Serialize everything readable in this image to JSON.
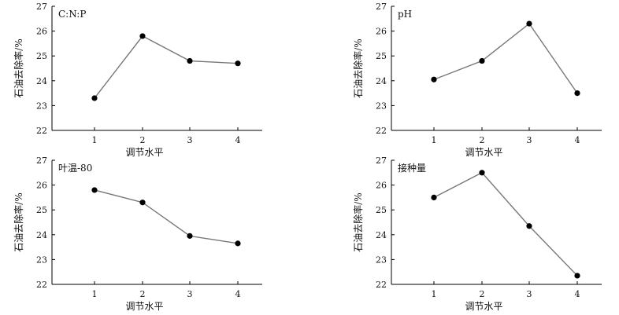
{
  "chart_data": [
    {
      "type": "line",
      "title": "C:N:P",
      "xlabel": "调节水平",
      "ylabel": "石油去除率/%",
      "x": [
        1,
        2,
        3,
        4
      ],
      "values": [
        23.3,
        25.8,
        24.8,
        24.7
      ],
      "ylim": [
        22,
        27
      ],
      "yticks": [
        22,
        23,
        24,
        25,
        26,
        27
      ],
      "grid": false,
      "series_color": "#777777",
      "marker_color": "#000000"
    },
    {
      "type": "line",
      "title": "pH",
      "xlabel": "调节水平",
      "ylabel": "石油去除率/%",
      "x": [
        1,
        2,
        3,
        4
      ],
      "values": [
        24.05,
        24.8,
        26.3,
        23.5
      ],
      "ylim": [
        22,
        27
      ],
      "yticks": [
        22,
        23,
        24,
        25,
        26,
        27
      ],
      "grid": false,
      "series_color": "#777777",
      "marker_color": "#000000"
    },
    {
      "type": "line",
      "title": "叶温-80",
      "xlabel": "调节水平",
      "ylabel": "石油去除率/%",
      "x": [
        1,
        2,
        3,
        4
      ],
      "values": [
        25.8,
        25.3,
        23.95,
        23.65
      ],
      "ylim": [
        22,
        27
      ],
      "yticks": [
        22,
        23,
        24,
        25,
        26,
        27
      ],
      "grid": false,
      "series_color": "#777777",
      "marker_color": "#000000"
    },
    {
      "type": "line",
      "title": "接种量",
      "xlabel": "调节水平",
      "ylabel": "石油去除率/%",
      "x": [
        1,
        2,
        3,
        4
      ],
      "values": [
        25.5,
        26.5,
        24.35,
        22.35
      ],
      "ylim": [
        22,
        27
      ],
      "yticks": [
        22,
        23,
        24,
        25,
        26,
        27
      ],
      "grid": false,
      "series_color": "#777777",
      "marker_color": "#000000"
    }
  ]
}
